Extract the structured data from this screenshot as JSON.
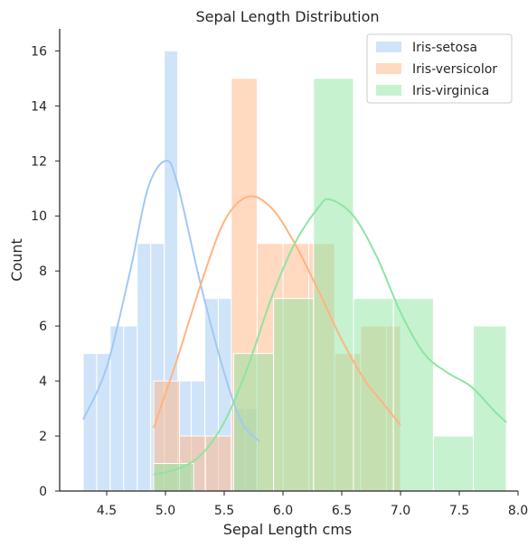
{
  "chart_data": {
    "type": "histogram",
    "title": "Sepal Length Distribution",
    "xlabel": "Sepal Length cms",
    "ylabel": "Count",
    "xlim": [
      4.1,
      8.0
    ],
    "ylim": [
      0,
      16.8
    ],
    "xticks": [
      4.5,
      5.0,
      5.5,
      6.0,
      6.5,
      7.0,
      7.5,
      8.0
    ],
    "yticks": [
      0,
      2,
      4,
      6,
      8,
      10,
      12,
      14,
      16
    ],
    "grid": false,
    "legend_position": "top-right",
    "kde": true,
    "series": [
      {
        "name": "Iris-setosa",
        "color": "#a1c9f4",
        "bins": [
          {
            "x0": 4.3,
            "x1": 4.415,
            "count": 5
          },
          {
            "x0": 4.415,
            "x1": 4.53,
            "count": 5
          },
          {
            "x0": 4.53,
            "x1": 4.645,
            "count": 6
          },
          {
            "x0": 4.645,
            "x1": 4.76,
            "count": 6
          },
          {
            "x0": 4.76,
            "x1": 4.875,
            "count": 9
          },
          {
            "x0": 4.875,
            "x1": 4.99,
            "count": 9
          },
          {
            "x0": 4.99,
            "x1": 5.105,
            "count": 16
          },
          {
            "x0": 5.105,
            "x1": 5.22,
            "count": 4
          },
          {
            "x0": 5.22,
            "x1": 5.335,
            "count": 4
          },
          {
            "x0": 5.335,
            "x1": 5.45,
            "count": 7
          },
          {
            "x0": 5.45,
            "x1": 5.565,
            "count": 7
          },
          {
            "x0": 5.565,
            "x1": 5.68,
            "count": 3
          },
          {
            "x0": 5.68,
            "x1": 5.795,
            "count": 3
          }
        ],
        "kde": [
          [
            4.3,
            2.6
          ],
          [
            4.5,
            4.5
          ],
          [
            4.7,
            8.0
          ],
          [
            4.85,
            11.0
          ],
          [
            5.0,
            12.0
          ],
          [
            5.1,
            11.2
          ],
          [
            5.3,
            7.5
          ],
          [
            5.5,
            4.3
          ],
          [
            5.65,
            2.5
          ],
          [
            5.8,
            1.8
          ]
        ]
      },
      {
        "name": "Iris-versicolor",
        "color": "#ffb482",
        "bins": [
          {
            "x0": 4.9,
            "x1": 5.12,
            "count": 4
          },
          {
            "x0": 5.12,
            "x1": 5.34,
            "count": 2
          },
          {
            "x0": 5.34,
            "x1": 5.56,
            "count": 2
          },
          {
            "x0": 5.56,
            "x1": 5.78,
            "count": 15
          },
          {
            "x0": 5.78,
            "x1": 6.0,
            "count": 9
          },
          {
            "x0": 6.0,
            "x1": 6.22,
            "count": 9
          },
          {
            "x0": 6.22,
            "x1": 6.44,
            "count": 9
          },
          {
            "x0": 6.44,
            "x1": 6.66,
            "count": 5
          },
          {
            "x0": 6.66,
            "x1": 6.88,
            "count": 6
          },
          {
            "x0": 6.88,
            "x1": 7.0,
            "count": 6
          }
        ],
        "kde": [
          [
            4.9,
            2.3
          ],
          [
            5.1,
            4.8
          ],
          [
            5.3,
            7.5
          ],
          [
            5.5,
            9.8
          ],
          [
            5.7,
            10.7
          ],
          [
            5.9,
            10.3
          ],
          [
            6.1,
            9.0
          ],
          [
            6.3,
            7.3
          ],
          [
            6.5,
            5.5
          ],
          [
            6.7,
            4.0
          ],
          [
            6.85,
            3.2
          ],
          [
            7.0,
            2.4
          ]
        ]
      },
      {
        "name": "Iris-virginica",
        "color": "#8de5a1",
        "bins": [
          {
            "x0": 4.9,
            "x1": 5.24,
            "count": 1
          },
          {
            "x0": 5.58,
            "x1": 5.92,
            "count": 5
          },
          {
            "x0": 5.92,
            "x1": 6.26,
            "count": 7
          },
          {
            "x0": 6.26,
            "x1": 6.6,
            "count": 15
          },
          {
            "x0": 6.6,
            "x1": 6.94,
            "count": 7
          },
          {
            "x0": 6.94,
            "x1": 7.28,
            "count": 7
          },
          {
            "x0": 7.28,
            "x1": 7.62,
            "count": 2
          },
          {
            "x0": 7.62,
            "x1": 7.9,
            "count": 6
          }
        ],
        "kde": [
          [
            4.9,
            0.6
          ],
          [
            5.1,
            0.8
          ],
          [
            5.3,
            1.3
          ],
          [
            5.5,
            2.5
          ],
          [
            5.7,
            4.5
          ],
          [
            5.9,
            7.0
          ],
          [
            6.1,
            9.0
          ],
          [
            6.3,
            10.3
          ],
          [
            6.4,
            10.6
          ],
          [
            6.6,
            10.0
          ],
          [
            6.8,
            8.5
          ],
          [
            7.0,
            6.5
          ],
          [
            7.2,
            5.0
          ],
          [
            7.4,
            4.3
          ],
          [
            7.6,
            3.8
          ],
          [
            7.8,
            2.9
          ],
          [
            7.9,
            2.5
          ]
        ]
      }
    ]
  }
}
